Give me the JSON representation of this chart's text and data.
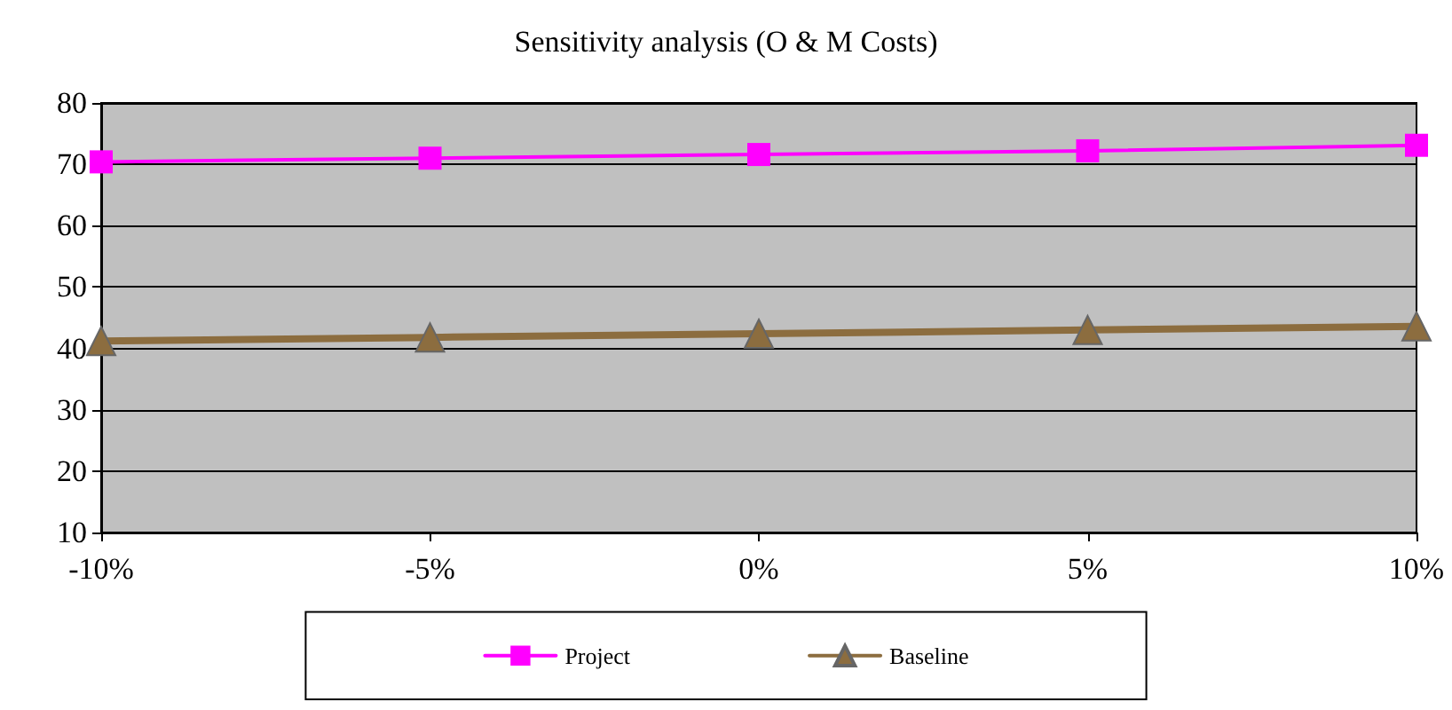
{
  "chart_data": {
    "type": "line",
    "title": "Sensitivity analysis (O & M Costs)",
    "categories": [
      "-10%",
      "-5%",
      "0%",
      "5%",
      "10%"
    ],
    "series": [
      {
        "name": "Project",
        "color": "#ff00ff",
        "marker": "square",
        "values": [
          70.4,
          71.0,
          71.6,
          72.2,
          73.1
        ]
      },
      {
        "name": "Baseline",
        "color": "#8c6d3f",
        "marker": "triangle",
        "values": [
          41.2,
          41.8,
          42.4,
          43.0,
          43.6
        ]
      }
    ],
    "ylim": [
      10,
      80
    ],
    "yticks": [
      10,
      20,
      30,
      40,
      50,
      60,
      70,
      80
    ],
    "grid": "y",
    "legend": "bottom",
    "line_style": "solid"
  }
}
